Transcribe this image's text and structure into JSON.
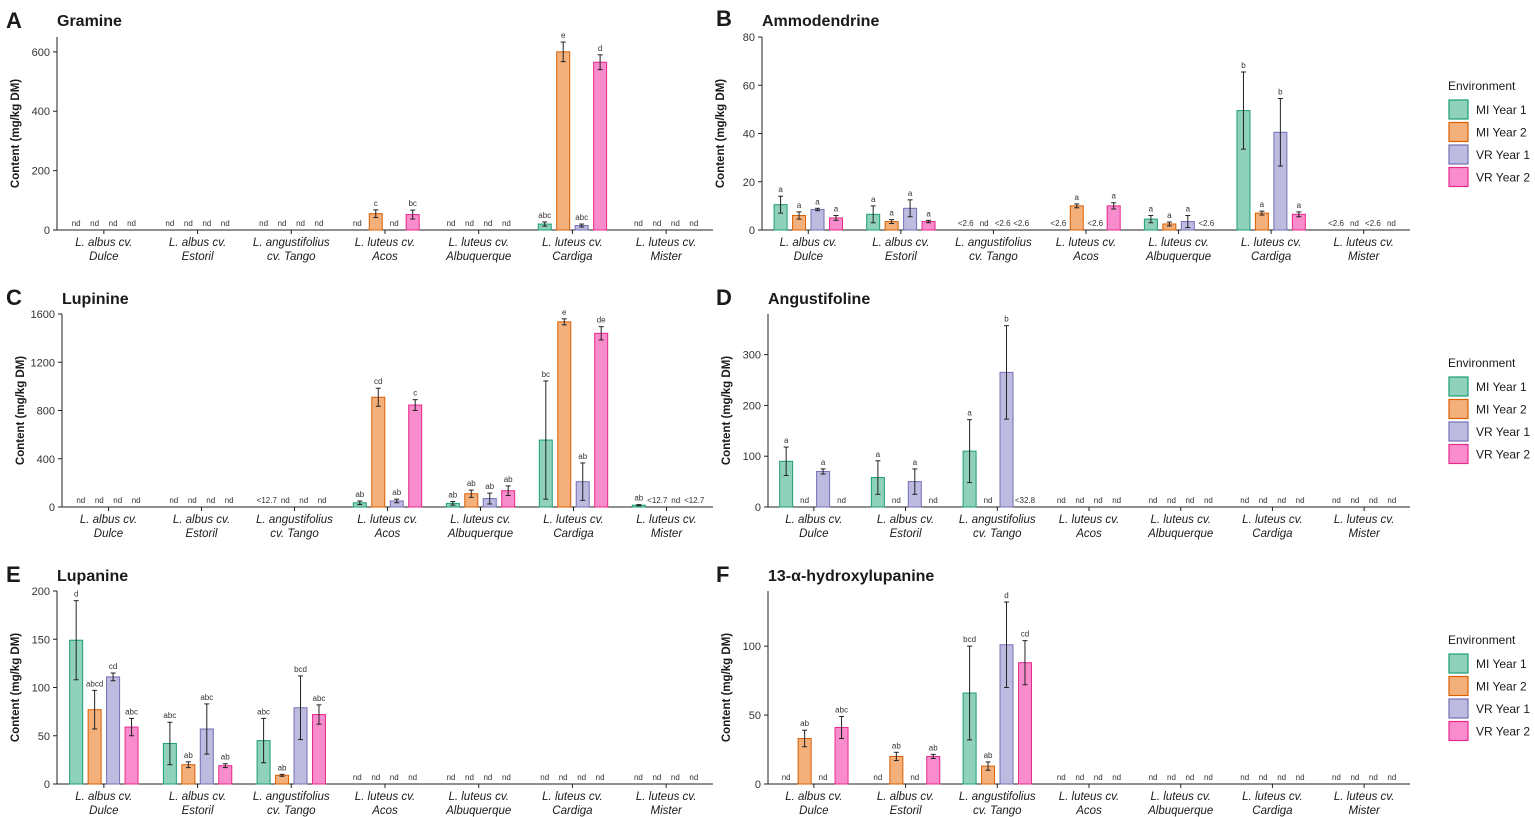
{
  "colors": {
    "series_fill": [
      "#8fd1bb",
      "#f4b07a",
      "#bdbbe0",
      "#f98ccd"
    ],
    "series_stroke": [
      "#1b9e77",
      "#d95f02",
      "#7570b3",
      "#e7298a"
    ]
  },
  "legend": {
    "title": "Environment",
    "items": [
      "MI Year 1",
      "MI Year 2",
      "VR Year 1",
      "VR Year 2"
    ]
  },
  "chart_data": [
    {
      "panel": "A",
      "title": "Gramine",
      "type": "bar",
      "ylabel": "Content (mg/kg DM)",
      "ylim": [
        0,
        650
      ],
      "yticks": [
        0,
        200,
        400,
        600
      ],
      "categories": [
        [
          "L. albus cv.",
          "Dulce"
        ],
        [
          "L. albus cv.",
          "Estoril"
        ],
        [
          "L. angustifolius",
          "cv. Tango"
        ],
        [
          "L. luteus cv.",
          "Acos"
        ],
        [
          "L. luteus cv.",
          "Albuquerque"
        ],
        [
          "L. luteus cv.",
          "Cardiga"
        ],
        [
          "L. luteus cv.",
          "Mister"
        ]
      ],
      "series": [
        {
          "name": "MI Year 1",
          "values": [
            null,
            null,
            null,
            null,
            null,
            20,
            null
          ],
          "errors": [
            0,
            0,
            0,
            0,
            0,
            7,
            0
          ],
          "labels": [
            "nd",
            "nd",
            "nd",
            "nd",
            "nd",
            "abc",
            "nd"
          ]
        },
        {
          "name": "MI Year 2",
          "values": [
            null,
            null,
            null,
            55,
            null,
            600,
            null
          ],
          "errors": [
            0,
            0,
            0,
            13,
            0,
            33,
            0
          ],
          "labels": [
            "nd",
            "nd",
            "nd",
            "c",
            "nd",
            "e",
            "nd"
          ]
        },
        {
          "name": "VR Year 1",
          "values": [
            null,
            null,
            null,
            null,
            null,
            15,
            null
          ],
          "errors": [
            0,
            0,
            0,
            0,
            0,
            5,
            0
          ],
          "labels": [
            "nd",
            "nd",
            "nd",
            "nd",
            "nd",
            "abc",
            "nd"
          ]
        },
        {
          "name": "VR Year 2",
          "values": [
            null,
            null,
            null,
            52,
            null,
            565,
            null
          ],
          "errors": [
            0,
            0,
            0,
            15,
            0,
            25,
            0
          ],
          "labels": [
            "nd",
            "nd",
            "nd",
            "bc",
            "nd",
            "d",
            "nd"
          ]
        }
      ]
    },
    {
      "panel": "B",
      "title": "Ammodendrine",
      "type": "bar",
      "ylabel": "Content (mg/kg DM)",
      "ylim": [
        0,
        80
      ],
      "yticks": [
        0,
        20,
        40,
        60,
        80
      ],
      "categories": [
        [
          "L. albus cv.",
          "Dulce"
        ],
        [
          "L. albus cv.",
          "Estoril"
        ],
        [
          "L. angustifolius",
          "cv. Tango"
        ],
        [
          "L. luteus cv.",
          "Acos"
        ],
        [
          "L. luteus cv.",
          "Albuquerque"
        ],
        [
          "L. luteus cv.",
          "Cardiga"
        ],
        [
          "L. luteus cv.",
          "Mister"
        ]
      ],
      "series": [
        {
          "name": "MI Year 1",
          "values": [
            10.5,
            6.5,
            null,
            null,
            4.5,
            49.5,
            null
          ],
          "errors": [
            3.5,
            3.5,
            0,
            0,
            1.5,
            16,
            0
          ],
          "labels": [
            "a",
            "a",
            "<2.6",
            "<2.6",
            "a",
            "b",
            "<2.6"
          ]
        },
        {
          "name": "MI Year 2",
          "values": [
            6,
            3.5,
            null,
            10,
            2.5,
            7,
            null
          ],
          "errors": [
            1.5,
            0.8,
            0,
            0.8,
            0.8,
            0.8,
            0
          ],
          "labels": [
            "a",
            "a",
            "nd",
            "a",
            "a",
            "a",
            "nd"
          ]
        },
        {
          "name": "VR Year 1",
          "values": [
            8.5,
            9,
            null,
            null,
            3.5,
            40.5,
            null
          ],
          "errors": [
            0.5,
            3.5,
            0,
            0,
            2.5,
            14,
            0
          ],
          "labels": [
            "a",
            "a",
            "<2.6",
            "<2.6",
            "a",
            "b",
            "<2.6"
          ]
        },
        {
          "name": "VR Year 2",
          "values": [
            5,
            3.5,
            null,
            10,
            null,
            6.5,
            null
          ],
          "errors": [
            1,
            0.5,
            0,
            1.3,
            0,
            1,
            0
          ],
          "labels": [
            "a",
            "a",
            "<2.6",
            "a",
            "<2.6",
            "a",
            "nd"
          ]
        }
      ]
    },
    {
      "panel": "C",
      "title": "Lupinine",
      "type": "bar",
      "ylabel": "Content (mg/kg DM)",
      "ylim": [
        0,
        1600
      ],
      "yticks": [
        0,
        400,
        800,
        1200,
        1600
      ],
      "categories": [
        [
          "L. albus cv.",
          "Dulce"
        ],
        [
          "L. albus cv.",
          "Estoril"
        ],
        [
          "L. angustifolius",
          "cv. Tango"
        ],
        [
          "L. luteus cv.",
          "Acos"
        ],
        [
          "L. luteus cv.",
          "Albuquerque"
        ],
        [
          "L. luteus cv.",
          "Cardiga"
        ],
        [
          "L. luteus cv.",
          "Mister"
        ]
      ],
      "series": [
        {
          "name": "MI Year 1",
          "values": [
            null,
            null,
            null,
            35,
            30,
            555,
            15
          ],
          "errors": [
            0,
            0,
            0,
            15,
            15,
            490,
            5
          ],
          "labels": [
            "nd",
            "nd",
            "<12.7",
            "ab",
            "ab",
            "bc",
            "ab"
          ]
        },
        {
          "name": "MI Year 2",
          "values": [
            null,
            null,
            null,
            910,
            110,
            1535,
            null
          ],
          "errors": [
            0,
            0,
            0,
            75,
            30,
            25,
            0
          ],
          "labels": [
            "nd",
            "nd",
            "nd",
            "cd",
            "ab",
            "e",
            "<12.7"
          ]
        },
        {
          "name": "VR Year 1",
          "values": [
            null,
            null,
            null,
            50,
            70,
            210,
            null
          ],
          "errors": [
            0,
            0,
            0,
            15,
            45,
            155,
            0
          ],
          "labels": [
            "nd",
            "nd",
            "nd",
            "ab",
            "ab",
            "ab",
            "nd"
          ]
        },
        {
          "name": "VR Year 2",
          "values": [
            null,
            null,
            null,
            845,
            135,
            1440,
            null
          ],
          "errors": [
            0,
            0,
            0,
            45,
            40,
            55,
            0
          ],
          "labels": [
            "nd",
            "nd",
            "nd",
            "c",
            "ab",
            "de",
            "<12.7"
          ]
        }
      ]
    },
    {
      "panel": "D",
      "title": "Angustifoline",
      "type": "bar",
      "ylabel": "Content (mg/kg DM)",
      "ylim": [
        0,
        380
      ],
      "yticks": [
        0,
        100,
        200,
        300
      ],
      "categories": [
        [
          "L. albus cv.",
          "Dulce"
        ],
        [
          "L. albus cv.",
          "Estoril"
        ],
        [
          "L. angustifolius",
          "cv. Tango"
        ],
        [
          "L. luteus cv.",
          "Acos"
        ],
        [
          "L. luteus cv.",
          "Albuquerque"
        ],
        [
          "L. luteus cv.",
          "Cardiga"
        ],
        [
          "L. luteus cv.",
          "Mister"
        ]
      ],
      "series": [
        {
          "name": "MI Year 1",
          "values": [
            90,
            58,
            110,
            null,
            null,
            null,
            null
          ],
          "errors": [
            28,
            33,
            62,
            0,
            0,
            0,
            0
          ],
          "labels": [
            "a",
            "a",
            "a",
            "nd",
            "nd",
            "nd",
            "nd"
          ]
        },
        {
          "name": "MI Year 2",
          "values": [
            null,
            null,
            null,
            null,
            null,
            null,
            null
          ],
          "errors": [
            0,
            0,
            0,
            0,
            0,
            0,
            0
          ],
          "labels": [
            "nd",
            "nd",
            "nd",
            "nd",
            "nd",
            "nd",
            "nd"
          ]
        },
        {
          "name": "VR Year 1",
          "values": [
            70,
            50,
            265,
            null,
            null,
            null,
            null
          ],
          "errors": [
            5,
            25,
            92,
            0,
            0,
            0,
            0
          ],
          "labels": [
            "a",
            "a",
            "b",
            "nd",
            "nd",
            "nd",
            "nd"
          ]
        },
        {
          "name": "VR Year 2",
          "values": [
            null,
            null,
            null,
            null,
            null,
            null,
            null
          ],
          "errors": [
            0,
            0,
            0,
            0,
            0,
            0,
            0
          ],
          "labels": [
            "nd",
            "nd",
            "<32.8",
            "nd",
            "nd",
            "nd",
            "nd"
          ]
        }
      ]
    },
    {
      "panel": "E",
      "title": "Lupanine",
      "type": "bar",
      "ylabel": "Content (mg/kg DM)",
      "ylim": [
        0,
        200
      ],
      "yticks": [
        0,
        50,
        100,
        150,
        200
      ],
      "categories": [
        [
          "L. albus cv.",
          "Dulce"
        ],
        [
          "L. albus cv.",
          "Estoril"
        ],
        [
          "L. angustifolius",
          "cv. Tango"
        ],
        [
          "L. luteus cv.",
          "Acos"
        ],
        [
          "L. luteus cv.",
          "Albuquerque"
        ],
        [
          "L. luteus cv.",
          "Cardiga"
        ],
        [
          "L. luteus cv.",
          "Mister"
        ]
      ],
      "series": [
        {
          "name": "MI Year 1",
          "values": [
            149,
            42,
            45,
            null,
            null,
            null,
            null
          ],
          "errors": [
            41,
            22,
            23,
            0,
            0,
            0,
            0
          ],
          "labels": [
            "d",
            "abc",
            "abc",
            "nd",
            "nd",
            "nd",
            "nd"
          ]
        },
        {
          "name": "MI Year 2",
          "values": [
            77,
            20,
            9,
            null,
            null,
            null,
            null
          ],
          "errors": [
            20,
            3,
            1,
            0,
            0,
            0,
            0
          ],
          "labels": [
            "abcd",
            "ab",
            "ab",
            "nd",
            "nd",
            "nd",
            "nd"
          ]
        },
        {
          "name": "VR Year 1",
          "values": [
            111,
            57,
            79,
            null,
            null,
            null,
            null
          ],
          "errors": [
            4,
            26,
            33,
            0,
            0,
            0,
            0
          ],
          "labels": [
            "cd",
            "abc",
            "bcd",
            "nd",
            "nd",
            "nd",
            "nd"
          ]
        },
        {
          "name": "VR Year 2",
          "values": [
            59,
            19,
            72,
            null,
            null,
            null,
            null
          ],
          "errors": [
            9,
            2,
            10,
            0,
            0,
            0,
            0
          ],
          "labels": [
            "abc",
            "ab",
            "abc",
            "nd",
            "nd",
            "nd",
            "nd"
          ]
        }
      ]
    },
    {
      "panel": "F",
      "title": "13-α-hydroxylupanine",
      "type": "bar",
      "ylabel": "Content (mg/kg DM)",
      "ylim": [
        0,
        140
      ],
      "yticks": [
        0,
        50,
        100
      ],
      "categories": [
        [
          "L. albus cv.",
          "Dulce"
        ],
        [
          "L. albus cv.",
          "Estoril"
        ],
        [
          "L. angustifolius",
          "cv. Tango"
        ],
        [
          "L. luteus cv.",
          "Acos"
        ],
        [
          "L. luteus cv.",
          "Albuquerque"
        ],
        [
          "L. luteus cv.",
          "Cardiga"
        ],
        [
          "L. luteus cv.",
          "Mister"
        ]
      ],
      "series": [
        {
          "name": "MI Year 1",
          "values": [
            null,
            null,
            66,
            null,
            null,
            null,
            null
          ],
          "errors": [
            0,
            0,
            34,
            0,
            0,
            0,
            0
          ],
          "labels": [
            "nd",
            "nd",
            "bcd",
            "nd",
            "nd",
            "nd",
            "nd"
          ]
        },
        {
          "name": "MI Year 2",
          "values": [
            33,
            20,
            13,
            null,
            null,
            null,
            null
          ],
          "errors": [
            6,
            3,
            3,
            0,
            0,
            0,
            0
          ],
          "labels": [
            "ab",
            "ab",
            "ab",
            "nd",
            "nd",
            "nd",
            "nd"
          ]
        },
        {
          "name": "VR Year 1",
          "values": [
            null,
            null,
            101,
            null,
            null,
            null,
            null
          ],
          "errors": [
            0,
            0,
            31,
            0,
            0,
            0,
            0
          ],
          "labels": [
            "nd",
            "nd",
            "d",
            "nd",
            "nd",
            "nd",
            "nd"
          ]
        },
        {
          "name": "VR Year 2",
          "values": [
            41,
            20,
            88,
            null,
            null,
            null,
            null
          ],
          "errors": [
            8,
            1.5,
            16,
            0,
            0,
            0,
            0
          ],
          "labels": [
            "abc",
            "ab",
            "cd",
            "nd",
            "nd",
            "nd",
            "nd"
          ]
        }
      ]
    }
  ]
}
